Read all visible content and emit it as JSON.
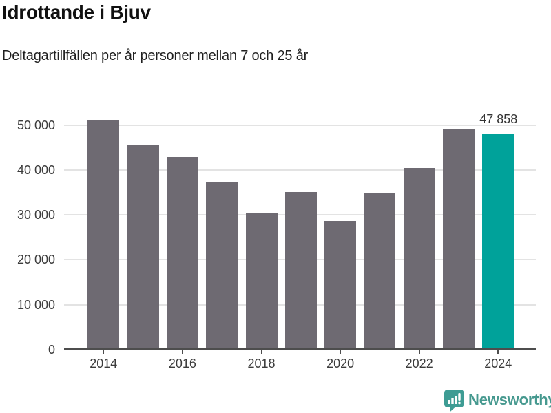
{
  "header": {
    "title": "Idrottande i Bjuv",
    "subtitle": "Deltagartillfällen per år personer mellan 7 och 25 år"
  },
  "chart_data": {
    "type": "bar",
    "title": "Idrottande i Bjuv",
    "subtitle": "Deltagartillfällen per år personer mellan 7 och 25 år",
    "categories": [
      "2014",
      "2015",
      "2016",
      "2017",
      "2018",
      "2019",
      "2020",
      "2021",
      "2022",
      "2023",
      "2024"
    ],
    "values": [
      50800,
      45400,
      42600,
      36900,
      30000,
      34800,
      28300,
      34700,
      40100,
      48700,
      47858
    ],
    "highlight_index": 10,
    "annotation": {
      "text": "47 858",
      "bar_index": 10
    },
    "y_ticks": [
      {
        "value": 0,
        "label": "0"
      },
      {
        "value": 10000,
        "label": "10 000"
      },
      {
        "value": 20000,
        "label": "20 000"
      },
      {
        "value": 30000,
        "label": "30 000"
      },
      {
        "value": 40000,
        "label": "40 000"
      },
      {
        "value": 50000,
        "label": "50 000"
      }
    ],
    "x_tick_indices": [
      0,
      2,
      4,
      6,
      8,
      10
    ],
    "xlabel": "",
    "ylabel": "",
    "ylim": [
      0,
      51800
    ],
    "grid": "horizontal",
    "legend": "none",
    "colors": {
      "bar": "#6e6a72",
      "highlight": "#00a29a",
      "axis": "#4d4d4d",
      "gridline": "#e3e3e3",
      "tick_text": "#3c3c3c"
    }
  },
  "footer": {
    "brand": "Newsworthy",
    "brand_color": "#46998f",
    "icon_color": "#3e9c94"
  }
}
